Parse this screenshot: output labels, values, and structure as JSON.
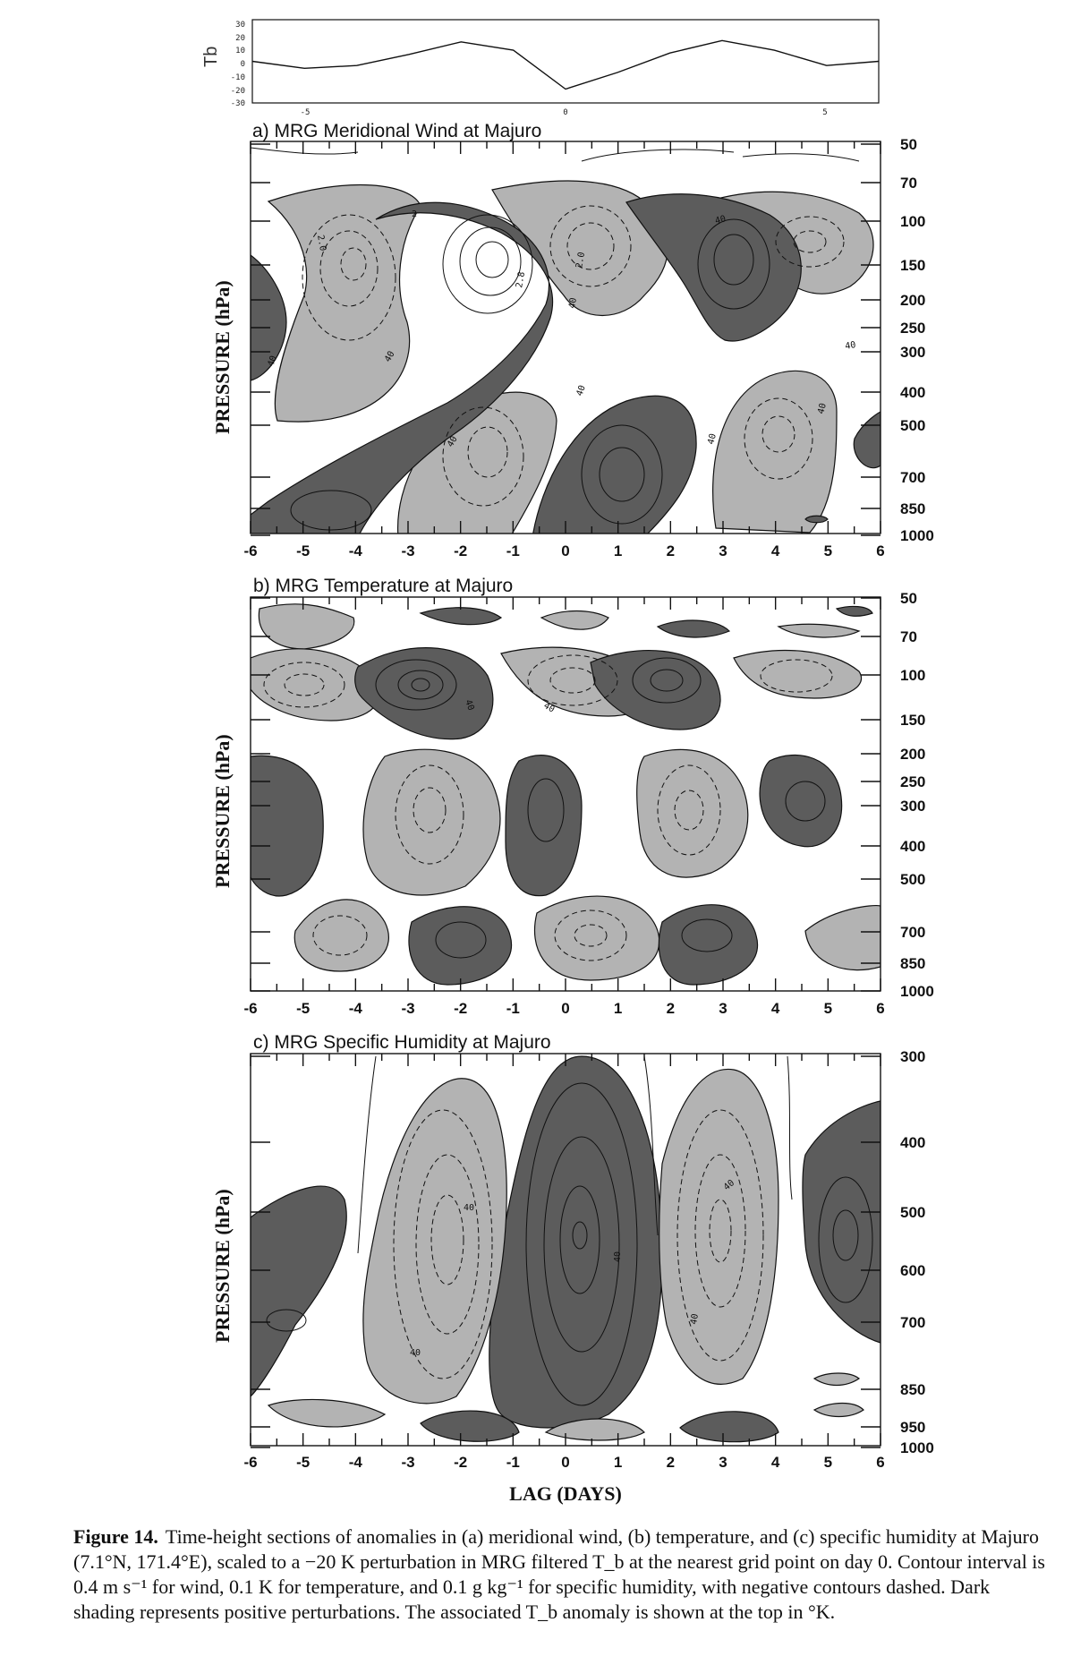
{
  "tb_panel": {
    "ylabel": "Tb",
    "yticks": [
      "30",
      "20",
      "10",
      "0",
      "-10",
      "-20",
      "-30"
    ],
    "xticks": [
      "-5",
      "0",
      "5"
    ],
    "chart_data": {
      "type": "line",
      "x": [
        -6,
        -5,
        -4,
        -3,
        -2,
        -1,
        0,
        1,
        2,
        3,
        4,
        5,
        6
      ],
      "values": [
        0,
        -5,
        -3,
        5,
        14,
        8,
        -20,
        -8,
        6,
        15,
        8,
        -3,
        0
      ],
      "ylim": [
        -30,
        30
      ],
      "xlim": [
        -6,
        6
      ]
    }
  },
  "panels": [
    {
      "title": "a) MRG Meridional Wind at Majuro",
      "pressure_levels": [
        "50",
        "70",
        "100",
        "150",
        "200",
        "250",
        "300",
        "400",
        "500",
        "700",
        "850",
        "1000"
      ],
      "x_ticks": [
        "-6",
        "-5",
        "-4",
        "-3",
        "-2",
        "-1",
        "0",
        "1",
        "2",
        "3",
        "4",
        "5",
        "6"
      ],
      "ylabel": "PRESSURE (hPa)",
      "contour_labels": [
        "2",
        "2.0",
        "2.8",
        "2",
        "2.0",
        "40",
        "40",
        "40",
        "40",
        "40",
        "40",
        "40",
        "40",
        "40",
        "40",
        "40"
      ]
    },
    {
      "title": "b) MRG Temperature at Majuro",
      "pressure_levels": [
        "50",
        "70",
        "100",
        "150",
        "200",
        "250",
        "300",
        "400",
        "500",
        "700",
        "850",
        "1000"
      ],
      "x_ticks": [
        "-6",
        "-5",
        "-4",
        "-3",
        "-2",
        "-1",
        "0",
        "1",
        "2",
        "3",
        "4",
        "5",
        "6"
      ],
      "ylabel": "PRESSURE (hPa)",
      "contour_labels": [
        "40",
        "40"
      ]
    },
    {
      "title": "c) MRG Specific Humidity at Majuro",
      "pressure_levels": [
        "300",
        "400",
        "500",
        "600",
        "700",
        "850",
        "950",
        "1000"
      ],
      "x_ticks": [
        "-6",
        "-5",
        "-4",
        "-3",
        "-2",
        "-1",
        "0",
        "1",
        "2",
        "3",
        "4",
        "5",
        "6"
      ],
      "ylabel": "PRESSURE (hPa)",
      "xlabel": "LAG (DAYS)",
      "contour_labels": [
        "40",
        "40",
        "40",
        "40",
        "40"
      ]
    }
  ],
  "caption": {
    "label": "Figure 14.",
    "text": "Time-height sections of anomalies in (a) meridional wind, (b) temperature, and (c) specific humidity at Majuro (7.1°N, 171.4°E), scaled to a −20 K perturbation in MRG filtered T_b at the nearest grid point on day 0. Contour interval is 0.4 m s⁻¹ for wind, 0.1 K for temperature, and 0.1 g kg⁻¹ for specific humidity, with negative contours dashed. Dark shading represents positive perturbations. The associated T_b anomaly is shown at the top in °K."
  },
  "colors": {
    "positive_shade": "#5c5c5c",
    "negative_shade": "#b3b3b3",
    "line": "#111111"
  }
}
